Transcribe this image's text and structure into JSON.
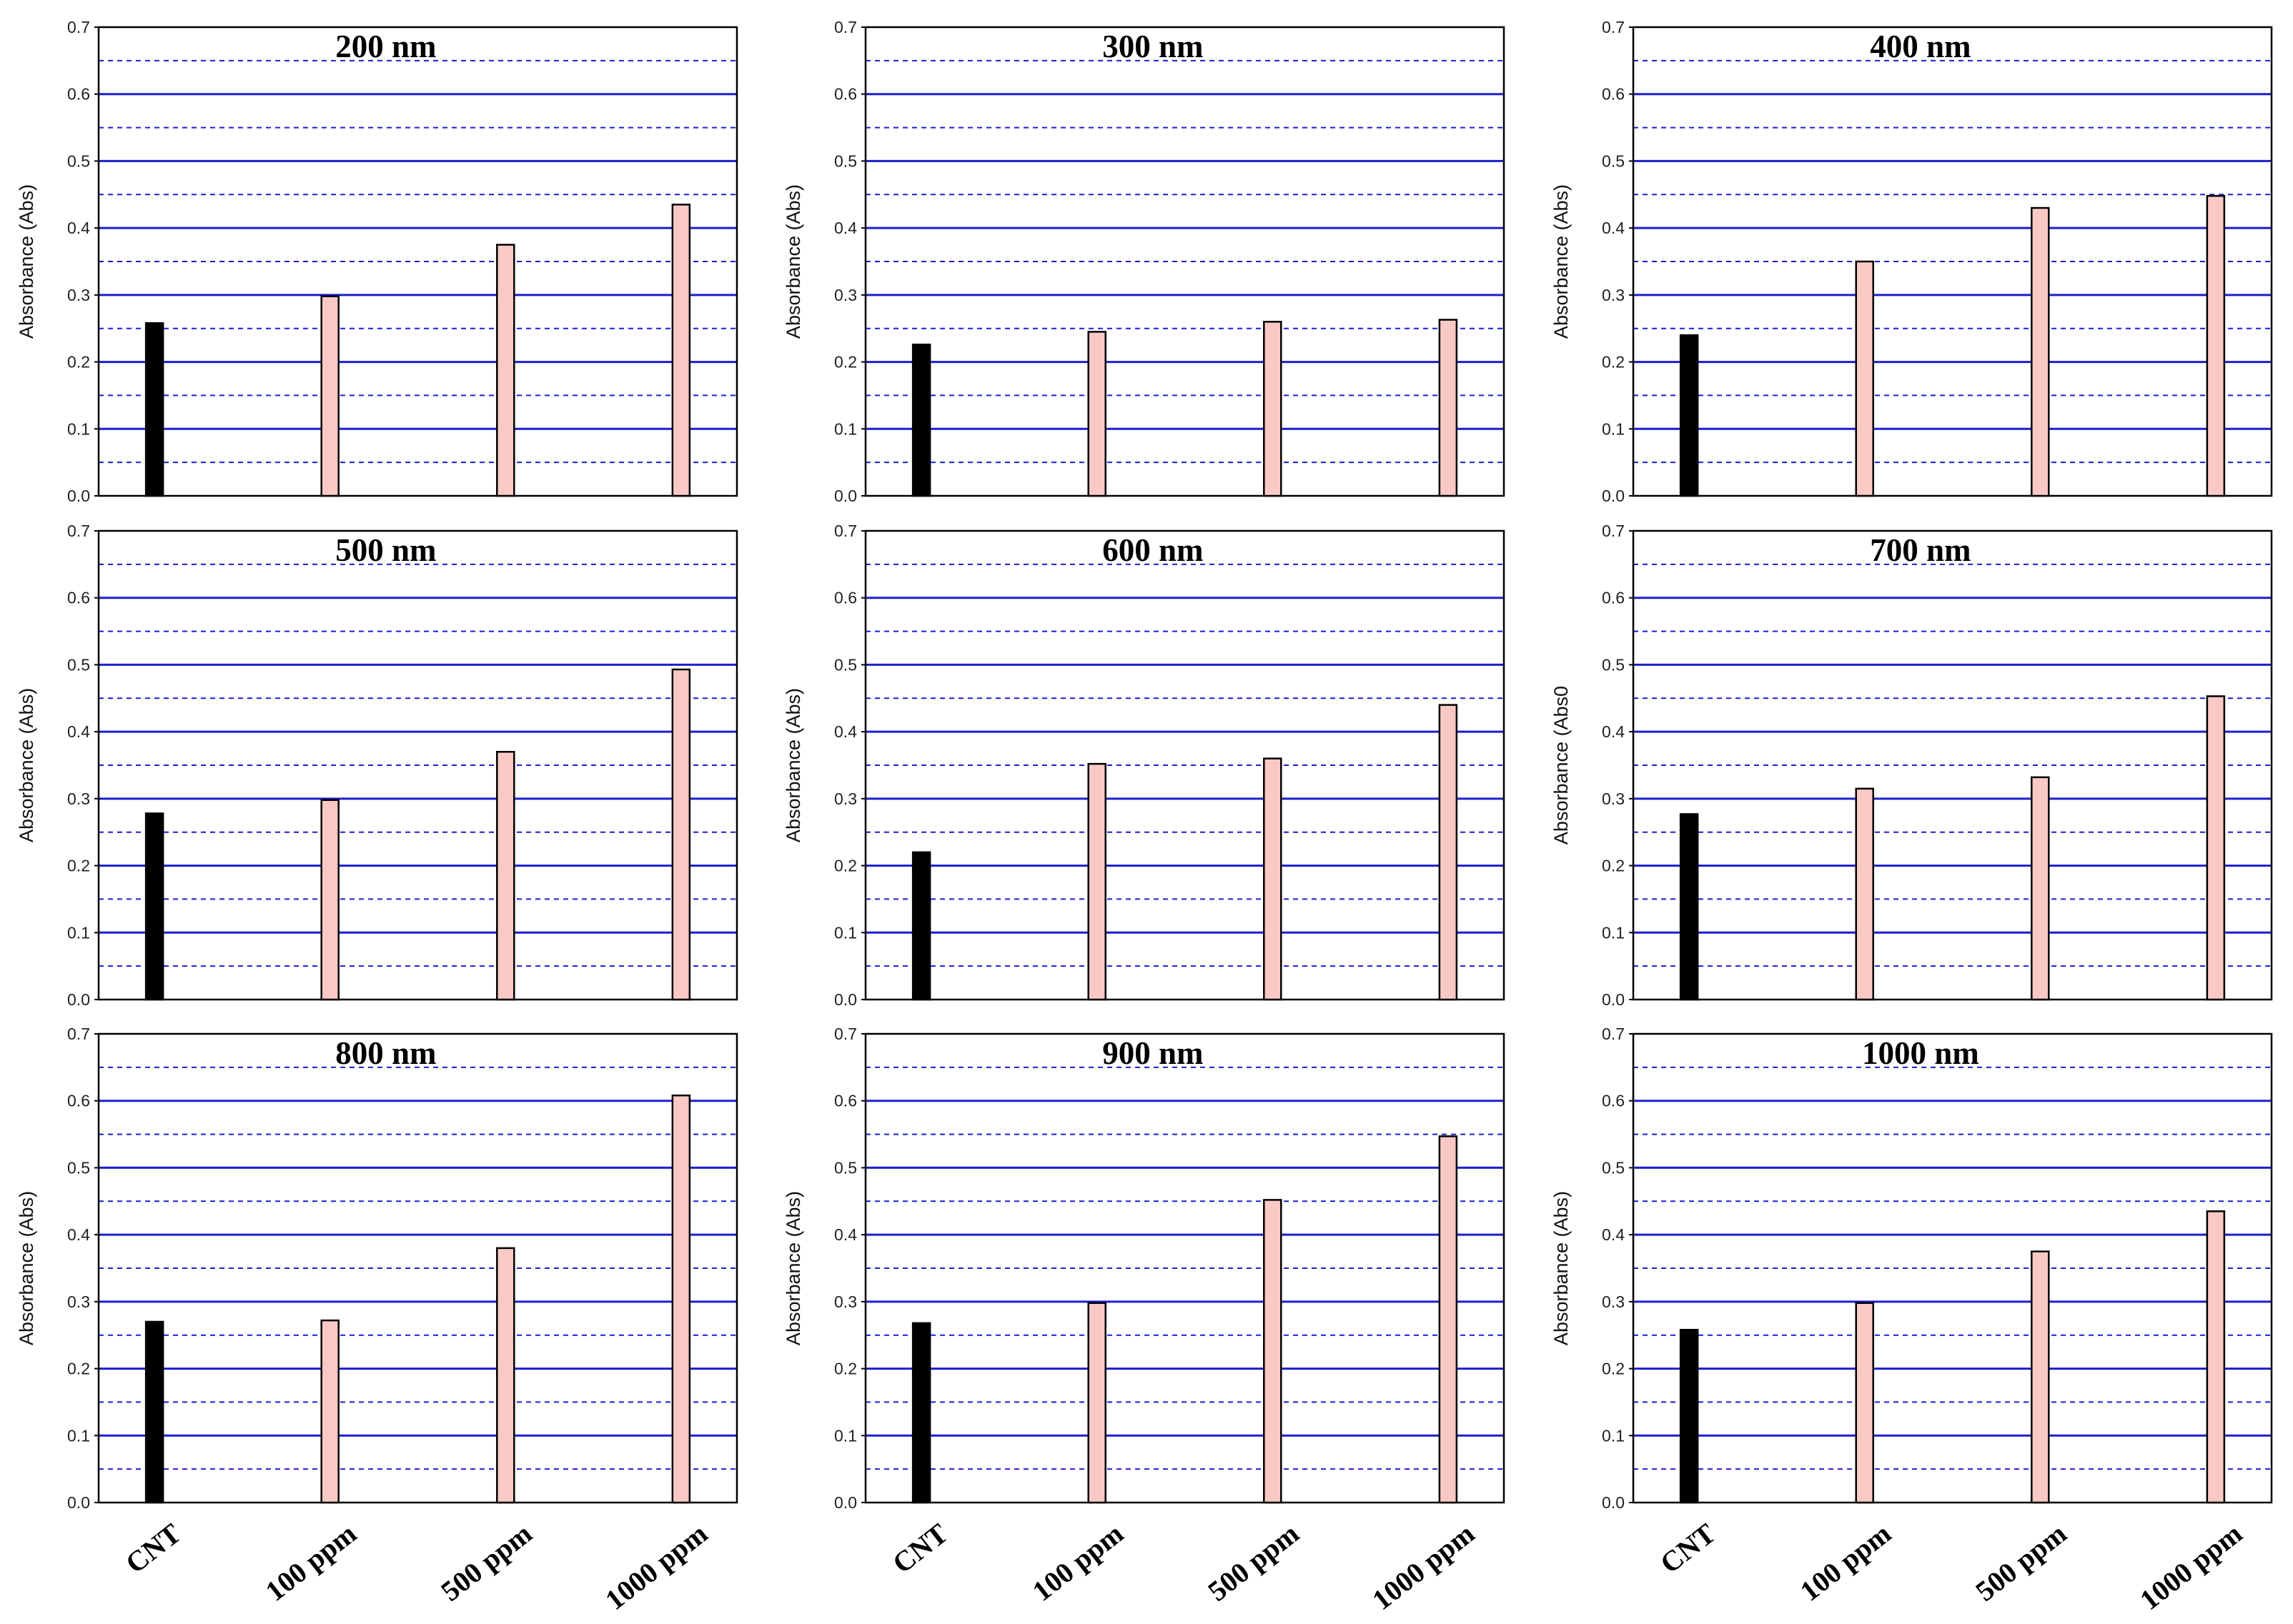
{
  "figure": {
    "colors": {
      "grid": "#1e1ecf",
      "frame": "#000000",
      "cnt_bar": "#000000",
      "sample_bar": "#f9c9c6",
      "bar_edge": "#000000"
    }
  },
  "chart_data": [
    {
      "type": "bar",
      "title": "200 nm",
      "ylabel": "Absorbance (Abs)",
      "xlabel": "",
      "categories": [
        "CNT",
        "100 ppm",
        "500 ppm",
        "1000 ppm"
      ],
      "values": [
        0.258,
        0.298,
        0.375,
        0.435
      ],
      "ylim": [
        0,
        0.7
      ],
      "yticks": [
        "0.0",
        "0.1",
        "0.2",
        "0.3",
        "0.4",
        "0.5",
        "0.6",
        "0.7"
      ],
      "grid": true
    },
    {
      "type": "bar",
      "title": "300 nm",
      "ylabel": "Absorbance (Abs)",
      "xlabel": "",
      "categories": [
        "CNT",
        "100 ppm",
        "500 ppm",
        "1000 ppm"
      ],
      "values": [
        0.226,
        0.245,
        0.26,
        0.263
      ],
      "ylim": [
        0,
        0.7
      ],
      "yticks": [
        "0.0",
        "0.1",
        "0.2",
        "0.3",
        "0.4",
        "0.5",
        "0.6",
        "0.7"
      ],
      "grid": true
    },
    {
      "type": "bar",
      "title": "400 nm",
      "ylabel": "Absorbance (Abs)",
      "xlabel": "",
      "categories": [
        "CNT",
        "100 ppm",
        "500 ppm",
        "1000 ppm"
      ],
      "values": [
        0.24,
        0.35,
        0.43,
        0.448
      ],
      "ylim": [
        0,
        0.7
      ],
      "yticks": [
        "0.0",
        "0.1",
        "0.2",
        "0.3",
        "0.4",
        "0.5",
        "0.6",
        "0.7"
      ],
      "grid": true
    },
    {
      "type": "bar",
      "title": "500 nm",
      "ylabel": "Absorbance (Abs)",
      "xlabel": "",
      "categories": [
        "CNT",
        "100 ppm",
        "500 ppm",
        "1000 ppm"
      ],
      "values": [
        0.278,
        0.298,
        0.37,
        0.493
      ],
      "ylim": [
        0,
        0.7
      ],
      "yticks": [
        "0.0",
        "0.1",
        "0.2",
        "0.3",
        "0.4",
        "0.5",
        "0.6",
        "0.7"
      ],
      "grid": true
    },
    {
      "type": "bar",
      "title": "600 nm",
      "ylabel": "Absorbance (Abs)",
      "xlabel": "",
      "categories": [
        "CNT",
        "100 ppm",
        "500 ppm",
        "1000 ppm"
      ],
      "values": [
        0.22,
        0.352,
        0.36,
        0.44
      ],
      "ylim": [
        0,
        0.7
      ],
      "yticks": [
        "0.0",
        "0.1",
        "0.2",
        "0.3",
        "0.4",
        "0.5",
        "0.6",
        "0.7"
      ],
      "grid": true
    },
    {
      "type": "bar",
      "title": "700 nm",
      "ylabel": "Absorbance (Abs0",
      "xlabel": "",
      "categories": [
        "CNT",
        "100 ppm",
        "500 ppm",
        "1000 ppm"
      ],
      "values": [
        0.277,
        0.315,
        0.332,
        0.453
      ],
      "ylim": [
        0,
        0.7
      ],
      "yticks": [
        "0.0",
        "0.1",
        "0.2",
        "0.3",
        "0.4",
        "0.5",
        "0.6",
        "0.7"
      ],
      "grid": true
    },
    {
      "type": "bar",
      "title": "800 nm",
      "ylabel": "Absorbance (Abs)",
      "xlabel": "",
      "categories": [
        "CNT",
        "100 ppm",
        "500 ppm",
        "1000 ppm"
      ],
      "values": [
        0.27,
        0.272,
        0.38,
        0.608
      ],
      "ylim": [
        0,
        0.7
      ],
      "yticks": [
        "0.0",
        "0.1",
        "0.2",
        "0.3",
        "0.4",
        "0.5",
        "0.6",
        "0.7"
      ],
      "grid": true
    },
    {
      "type": "bar",
      "title": "900 nm",
      "ylabel": "Absorbance (Abs)",
      "xlabel": "",
      "categories": [
        "CNT",
        "100 ppm",
        "500 ppm",
        "1000 ppm"
      ],
      "values": [
        0.268,
        0.298,
        0.452,
        0.547
      ],
      "ylim": [
        0,
        0.7
      ],
      "yticks": [
        "0.0",
        "0.1",
        "0.2",
        "0.3",
        "0.4",
        "0.5",
        "0.6",
        "0.7"
      ],
      "grid": true
    },
    {
      "type": "bar",
      "title": "1000 nm",
      "ylabel": "Absorbance (Abs)",
      "xlabel": "",
      "categories": [
        "CNT",
        "100 ppm",
        "500 ppm",
        "1000 ppm"
      ],
      "values": [
        0.258,
        0.298,
        0.375,
        0.435
      ],
      "ylim": [
        0,
        0.7
      ],
      "yticks": [
        "0.0",
        "0.1",
        "0.2",
        "0.3",
        "0.4",
        "0.5",
        "0.6",
        "0.7"
      ],
      "grid": true
    }
  ]
}
